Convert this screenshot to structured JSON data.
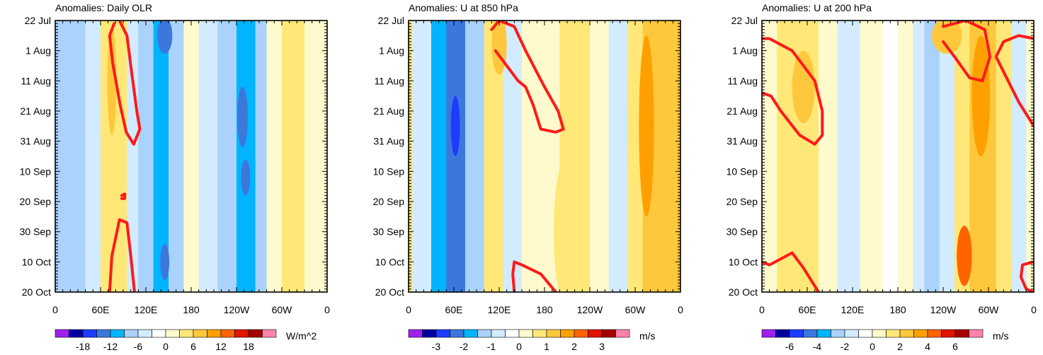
{
  "palette": [
    "#a020f0",
    "#0000a0",
    "#1e3cff",
    "#3c78dc",
    "#00b4ff",
    "#aad2fa",
    "#d2ebff",
    "#ffffff",
    "#fffacd",
    "#ffe878",
    "#ffc83c",
    "#ffa000",
    "#ff6400",
    "#e11400",
    "#a50000",
    "#ff82ab"
  ],
  "contour_color": "#ff1a1a",
  "chart_data": [
    {
      "type": "heatmap",
      "title": "Anomalies: Daily OLR",
      "y_tick_labels": [
        "22 Jul",
        "1 Aug",
        "11 Aug",
        "21 Aug",
        "31 Aug",
        "10 Sep",
        "20 Sep",
        "30 Sep",
        "10 Oct",
        "20 Oct"
      ],
      "x_tick_labels": [
        "0",
        "60E",
        "120E",
        "180",
        "120W",
        "60W",
        "0"
      ],
      "xlim": [
        0,
        360
      ],
      "ylim_days": [
        0,
        90
      ],
      "colorbar": {
        "labels": [
          "-18",
          "-12",
          "-6",
          "0",
          "6",
          "12",
          "18"
        ],
        "units": "W/m^2",
        "levels": 14
      },
      "bands": [
        {
          "x": [
            0,
            20
          ],
          "v": -5
        },
        {
          "x": [
            20,
            40
          ],
          "v": -3
        },
        {
          "x": [
            40,
            60
          ],
          "v": -2
        },
        {
          "x": [
            60,
            75
          ],
          "v": 3
        },
        {
          "x": [
            75,
            95
          ],
          "v": 5
        },
        {
          "x": [
            95,
            110
          ],
          "v": -2
        },
        {
          "x": [
            110,
            130
          ],
          "v": -4
        },
        {
          "x": [
            130,
            150
          ],
          "v": -6
        },
        {
          "x": [
            150,
            170
          ],
          "v": -3
        },
        {
          "x": [
            170,
            190
          ],
          "v": 1
        },
        {
          "x": [
            190,
            215
          ],
          "v": -2
        },
        {
          "x": [
            215,
            240
          ],
          "v": -5
        },
        {
          "x": [
            240,
            265
          ],
          "v": -8
        },
        {
          "x": [
            265,
            280
          ],
          "v": -3
        },
        {
          "x": [
            280,
            300
          ],
          "v": 2
        },
        {
          "x": [
            300,
            330
          ],
          "v": 3
        },
        {
          "x": [
            330,
            360
          ],
          "v": 1
        }
      ],
      "blobs": [
        {
          "cx": 145,
          "cy": 5,
          "rx": 10,
          "ry": 6,
          "v": -10
        },
        {
          "cx": 145,
          "cy": 80,
          "rx": 6,
          "ry": 6,
          "v": -10
        },
        {
          "cx": 248,
          "cy": 32,
          "rx": 7,
          "ry": 10,
          "v": -10
        },
        {
          "cx": 252,
          "cy": 52,
          "rx": 6,
          "ry": 6,
          "v": -9
        },
        {
          "cx": 75,
          "cy": 20,
          "rx": 6,
          "ry": 18,
          "v": 6
        }
      ],
      "contours": [
        [
          [
            85,
            0
          ],
          [
            95,
            5
          ],
          [
            100,
            15
          ],
          [
            108,
            30
          ],
          [
            112,
            36
          ],
          [
            104,
            41
          ],
          [
            94,
            37
          ],
          [
            86,
            28
          ],
          [
            76,
            14
          ],
          [
            72,
            5
          ],
          [
            78,
            1
          ]
        ],
        [
          [
            72,
            90
          ],
          [
            75,
            78
          ],
          [
            85,
            66
          ],
          [
            95,
            67
          ],
          [
            100,
            78
          ],
          [
            105,
            90
          ]
        ],
        [
          [
            88,
            58
          ],
          [
            92,
            57.5
          ],
          [
            92,
            59
          ],
          [
            88,
            59
          ]
        ]
      ]
    },
    {
      "type": "heatmap",
      "title": "Anomalies: U at 850 hPa",
      "y_tick_labels": [
        "22 Jul",
        "1 Aug",
        "11 Aug",
        "21 Aug",
        "31 Aug",
        "10 Sep",
        "20 Sep",
        "30 Sep",
        "10 Oct",
        "20 Oct"
      ],
      "x_tick_labels": [
        "0",
        "60E",
        "120E",
        "180",
        "120W",
        "60W",
        "0"
      ],
      "xlim": [
        0,
        360
      ],
      "ylim_days": [
        0,
        90
      ],
      "colorbar": {
        "labels": [
          "-3",
          "-2",
          "-1",
          "0",
          "1",
          "2",
          "3"
        ],
        "units": "m/s",
        "levels": 14
      },
      "bands": [
        {
          "x": [
            0,
            5
          ],
          "v": 0.6
        },
        {
          "x": [
            5,
            30
          ],
          "v": -0.4
        },
        {
          "x": [
            30,
            50
          ],
          "v": -1.2
        },
        {
          "x": [
            50,
            75
          ],
          "v": -1.6
        },
        {
          "x": [
            75,
            100
          ],
          "v": -0.8
        },
        {
          "x": [
            100,
            125
          ],
          "v": 0.6
        },
        {
          "x": [
            125,
            150
          ],
          "v": -0.4
        },
        {
          "x": [
            150,
            175
          ],
          "v": 0.4
        },
        {
          "x": [
            175,
            200
          ],
          "v": 0.2
        },
        {
          "x": [
            200,
            240
          ],
          "v": 0.8
        },
        {
          "x": [
            240,
            265
          ],
          "v": 0.3
        },
        {
          "x": [
            265,
            290
          ],
          "v": -0.4
        },
        {
          "x": [
            290,
            310
          ],
          "v": 0.6
        },
        {
          "x": [
            310,
            335
          ],
          "v": 1.4
        },
        {
          "x": [
            335,
            360
          ],
          "v": 1.2
        }
      ],
      "blobs": [
        {
          "cx": 62,
          "cy": 35,
          "rx": 6,
          "ry": 10,
          "v": -2.2
        },
        {
          "cx": 120,
          "cy": 8,
          "rx": 10,
          "ry": 10,
          "v": 1.3
        },
        {
          "cx": 315,
          "cy": 35,
          "rx": 10,
          "ry": 30,
          "v": 1.8
        },
        {
          "cx": 210,
          "cy": 70,
          "rx": 18,
          "ry": 25,
          "v": 0.9
        }
      ],
      "contours": [
        [
          [
            110,
            3
          ],
          [
            120,
            0
          ],
          [
            140,
            2
          ],
          [
            155,
            10
          ],
          [
            180,
            22
          ],
          [
            198,
            30
          ],
          [
            205,
            36
          ],
          [
            195,
            37
          ],
          [
            175,
            36
          ],
          [
            165,
            28
          ],
          [
            155,
            22
          ],
          [
            145,
            20
          ],
          [
            130,
            15
          ],
          [
            115,
            10
          ]
        ],
        [
          [
            140,
            90
          ],
          [
            138,
            84
          ],
          [
            140,
            80
          ],
          [
            150,
            81
          ],
          [
            175,
            84
          ],
          [
            195,
            90
          ]
        ]
      ]
    },
    {
      "type": "heatmap",
      "title": "Anomalies: U at 200 hPa",
      "y_tick_labels": [
        "22 Jul",
        "1 Aug",
        "11 Aug",
        "21 Aug",
        "31 Aug",
        "10 Sep",
        "20 Sep",
        "30 Sep",
        "10 Oct",
        "20 Oct"
      ],
      "x_tick_labels": [
        "0",
        "60E",
        "120E",
        "180",
        "120W",
        "60W",
        "0"
      ],
      "xlim": [
        0,
        360
      ],
      "ylim_days": [
        0,
        90
      ],
      "colorbar": {
        "labels": [
          "-6",
          "-4",
          "-2",
          "0",
          "2",
          "4",
          "6"
        ],
        "units": "m/s",
        "levels": 14
      },
      "bands": [
        {
          "x": [
            0,
            20
          ],
          "v": 0.5
        },
        {
          "x": [
            20,
            50
          ],
          "v": 1.5
        },
        {
          "x": [
            50,
            75
          ],
          "v": 1.2
        },
        {
          "x": [
            75,
            100
          ],
          "v": 0.4
        },
        {
          "x": [
            100,
            130
          ],
          "v": -0.5
        },
        {
          "x": [
            130,
            160
          ],
          "v": 0.4
        },
        {
          "x": [
            160,
            180
          ],
          "v": -0.4
        },
        {
          "x": [
            180,
            200
          ],
          "v": 0.4
        },
        {
          "x": [
            200,
            215
          ],
          "v": -0.8
        },
        {
          "x": [
            215,
            235
          ],
          "v": -1.6
        },
        {
          "x": [
            235,
            255
          ],
          "v": -0.6
        },
        {
          "x": [
            255,
            275
          ],
          "v": 1.8
        },
        {
          "x": [
            275,
            310
          ],
          "v": 2.6
        },
        {
          "x": [
            310,
            330
          ],
          "v": 1.3
        },
        {
          "x": [
            330,
            350
          ],
          "v": -0.6
        },
        {
          "x": [
            350,
            360
          ],
          "v": 0.8
        }
      ],
      "blobs": [
        {
          "cx": 290,
          "cy": 25,
          "rx": 12,
          "ry": 20,
          "v": 3.6
        },
        {
          "cx": 268,
          "cy": 78,
          "rx": 10,
          "ry": 10,
          "v": 4.2
        },
        {
          "cx": 55,
          "cy": 22,
          "rx": 15,
          "ry": 12,
          "v": 2.4
        },
        {
          "cx": 245,
          "cy": 5,
          "rx": 20,
          "ry": 6,
          "v": 2.5
        }
      ],
      "contours": [
        [
          [
            0,
            6
          ],
          [
            10,
            6
          ],
          [
            40,
            10
          ],
          [
            70,
            20
          ],
          [
            80,
            30
          ],
          [
            80,
            38
          ],
          [
            70,
            41
          ],
          [
            50,
            38
          ],
          [
            25,
            30
          ],
          [
            12,
            25
          ],
          [
            0,
            24
          ]
        ],
        [
          [
            0,
            80
          ],
          [
            10,
            81
          ],
          [
            25,
            79
          ],
          [
            40,
            77
          ],
          [
            55,
            82
          ],
          [
            75,
            90
          ]
        ],
        [
          [
            240,
            2
          ],
          [
            270,
            0
          ],
          [
            295,
            3
          ],
          [
            302,
            12
          ],
          [
            292,
            20
          ],
          [
            275,
            19
          ],
          [
            255,
            12
          ],
          [
            240,
            7
          ]
        ],
        [
          [
            360,
            35
          ],
          [
            340,
            27
          ],
          [
            318,
            16
          ],
          [
            310,
            12
          ],
          [
            320,
            7
          ],
          [
            340,
            5
          ],
          [
            360,
            6
          ]
        ],
        [
          [
            360,
            80
          ],
          [
            345,
            81
          ],
          [
            343,
            85
          ],
          [
            350,
            89
          ],
          [
            360,
            90
          ]
        ]
      ]
    }
  ]
}
